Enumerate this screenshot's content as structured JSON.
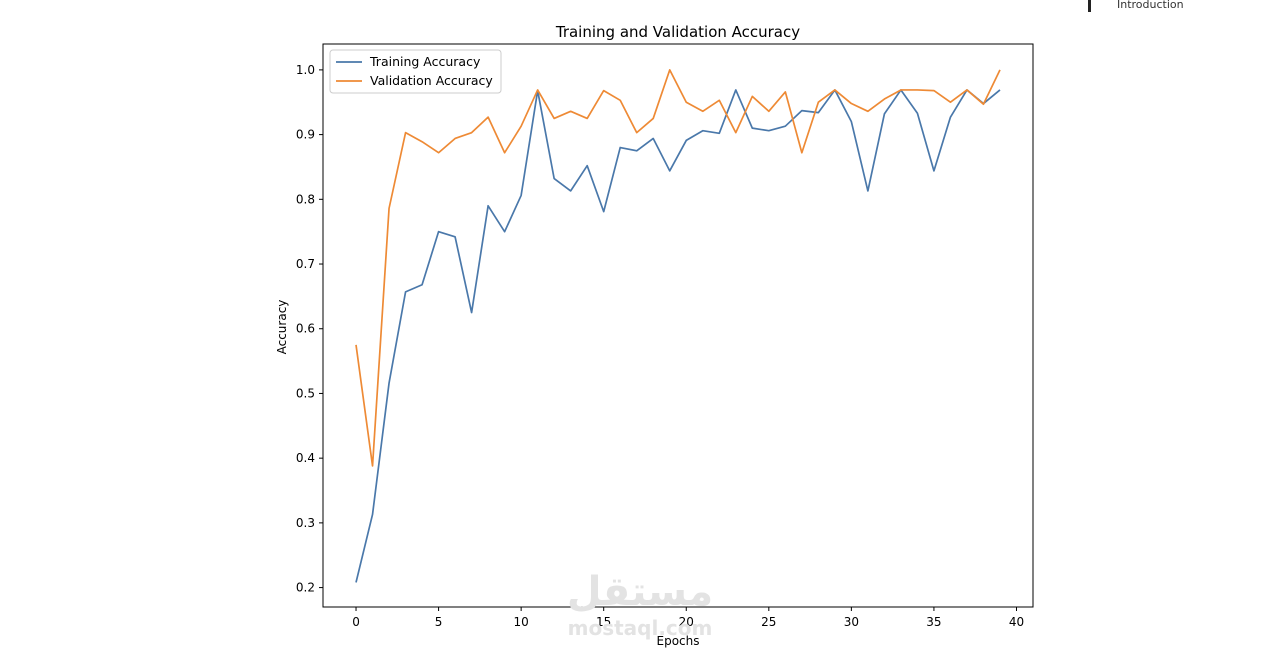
{
  "toc": {
    "item": "Introduction"
  },
  "watermark": {
    "arabic": "مستقل",
    "latin": "mostaql.com"
  },
  "chart_data": {
    "type": "line",
    "title": "Training and Validation Accuracy",
    "xlabel": "Epochs",
    "ylabel": "Accuracy",
    "xlim": [
      -2,
      41
    ],
    "ylim": [
      0.17,
      1.04
    ],
    "xticks": [
      0,
      5,
      10,
      15,
      20,
      25,
      30,
      35,
      40
    ],
    "yticks": [
      0.2,
      0.3,
      0.4,
      0.5,
      0.6,
      0.7,
      0.8,
      0.9,
      1.0
    ],
    "grid": false,
    "legend_position": "top-left",
    "x": [
      0,
      1,
      2,
      3,
      4,
      5,
      6,
      7,
      8,
      9,
      10,
      11,
      12,
      13,
      14,
      15,
      16,
      17,
      18,
      19,
      20,
      21,
      22,
      23,
      24,
      25,
      26,
      27,
      28,
      29,
      30,
      31,
      32,
      33,
      34,
      35,
      36,
      37,
      38,
      39
    ],
    "series": [
      {
        "name": "Training Accuracy",
        "color": "#4a78aa",
        "values": [
          0.208,
          0.313,
          0.516,
          0.657,
          0.668,
          0.75,
          0.742,
          0.625,
          0.79,
          0.75,
          0.806,
          0.968,
          0.832,
          0.813,
          0.852,
          0.781,
          0.88,
          0.875,
          0.894,
          0.844,
          0.891,
          0.906,
          0.902,
          0.969,
          0.91,
          0.906,
          0.913,
          0.937,
          0.934,
          0.969,
          0.92,
          0.813,
          0.932,
          0.969,
          0.933,
          0.844,
          0.927,
          0.969,
          0.948,
          0.969
        ]
      },
      {
        "name": "Validation Accuracy",
        "color": "#ee8a35",
        "values": [
          0.575,
          0.388,
          0.786,
          0.903,
          0.889,
          0.872,
          0.894,
          0.903,
          0.927,
          0.872,
          0.913,
          0.969,
          0.925,
          0.936,
          0.925,
          0.968,
          0.953,
          0.903,
          0.925,
          1.0,
          0.95,
          0.936,
          0.953,
          0.903,
          0.959,
          0.936,
          0.966,
          0.872,
          0.95,
          0.969,
          0.948,
          0.936,
          0.955,
          0.969,
          0.969,
          0.968,
          0.95,
          0.969,
          0.947,
          1.0
        ]
      }
    ]
  }
}
